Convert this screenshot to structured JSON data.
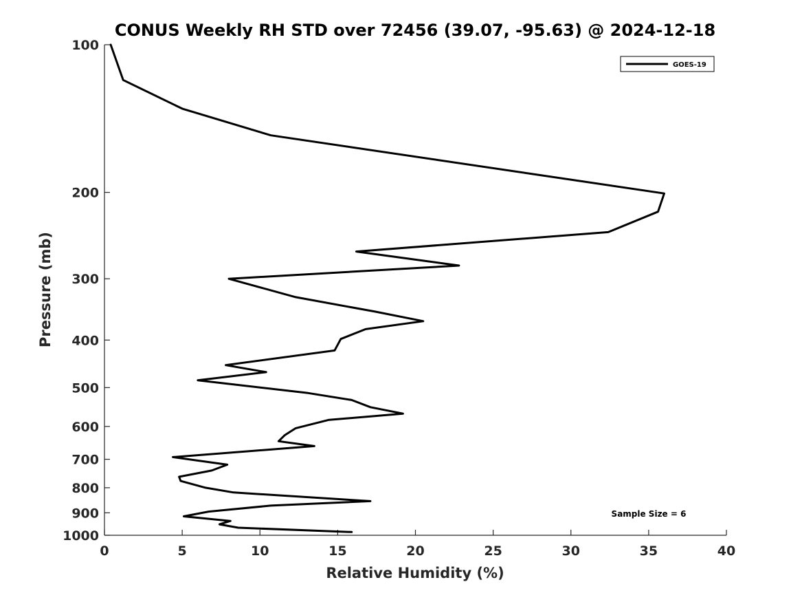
{
  "chart_data": {
    "type": "line",
    "title": "CONUS Weekly RH STD over 72456 (39.07, -95.63) @ 2024-12-18",
    "xlabel": "Relative Humidity (%)",
    "ylabel": "Pressure (mb)",
    "xlim": [
      0,
      40
    ],
    "ylim": [
      100,
      1000
    ],
    "y_scale": "log",
    "y_reversed": true,
    "x_ticks": [
      0,
      5,
      10,
      15,
      20,
      25,
      30,
      35,
      40
    ],
    "x_tick_labels": [
      "0",
      "5",
      "10",
      "15",
      "20",
      "25",
      "30",
      "35",
      "40"
    ],
    "y_ticks": [
      100,
      200,
      300,
      400,
      500,
      600,
      700,
      800,
      900,
      1000
    ],
    "y_tick_labels": [
      "100",
      "200",
      "300",
      "400",
      "500",
      "600",
      "700",
      "800",
      "900",
      "1000"
    ],
    "grid": false,
    "legend_position": "top-right",
    "series": [
      {
        "name": "GOES-19",
        "color": "#000000",
        "points": [
          [
            0.4,
            100
          ],
          [
            1.2,
            118
          ],
          [
            5.0,
            135
          ],
          [
            10.7,
            153
          ],
          [
            36.0,
            201
          ],
          [
            35.6,
            219
          ],
          [
            32.4,
            241
          ],
          [
            16.2,
            264
          ],
          [
            22.8,
            282
          ],
          [
            8.0,
            300
          ],
          [
            12.3,
            327
          ],
          [
            17.4,
            350
          ],
          [
            20.5,
            366
          ],
          [
            16.8,
            380
          ],
          [
            15.2,
            398
          ],
          [
            14.8,
            420
          ],
          [
            7.8,
            450
          ],
          [
            10.4,
            465
          ],
          [
            6.0,
            483
          ],
          [
            13.1,
            513
          ],
          [
            15.9,
            530
          ],
          [
            17.1,
            548
          ],
          [
            19.2,
            565
          ],
          [
            14.4,
            582
          ],
          [
            12.3,
            605
          ],
          [
            11.6,
            625
          ],
          [
            11.2,
            643
          ],
          [
            13.5,
            658
          ],
          [
            4.4,
            693
          ],
          [
            7.9,
            718
          ],
          [
            6.9,
            738
          ],
          [
            4.8,
            760
          ],
          [
            4.9,
            775
          ],
          [
            6.5,
            800
          ],
          [
            8.3,
            818
          ],
          [
            17.1,
            852
          ],
          [
            10.7,
            870
          ],
          [
            6.7,
            895
          ],
          [
            5.1,
            915
          ],
          [
            8.1,
            935
          ],
          [
            7.4,
            950
          ],
          [
            8.6,
            965
          ],
          [
            15.9,
            985
          ]
        ]
      }
    ],
    "annotation": "Sample Size = 6"
  }
}
